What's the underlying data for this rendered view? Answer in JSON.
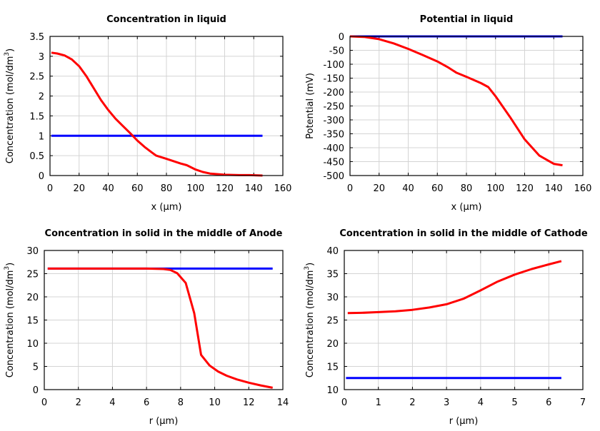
{
  "chart_data": [
    {
      "type": "line",
      "title": "Concentration in liquid",
      "xlabel": "x (µm)",
      "ylabel": "Concentration (mol/dm",
      "ylabel_sup": "3",
      "ylabel_end": ")",
      "xlim": [
        0,
        160
      ],
      "ylim": [
        0,
        3.5
      ],
      "xticks": [
        "0",
        "20",
        "40",
        "60",
        "80",
        "100",
        "120",
        "140",
        "160"
      ],
      "yticks": [
        "0",
        "0.5",
        "1",
        "1.5",
        "2",
        "2.5",
        "3",
        "3.5"
      ],
      "grid": true,
      "series": [
        {
          "color": "#0000ff",
          "x": [
            1,
            146
          ],
          "y": [
            1,
            1
          ]
        },
        {
          "color": "#ff0000",
          "x": [
            1,
            5,
            10,
            15,
            20,
            25,
            30,
            35,
            40,
            45,
            50,
            55,
            60,
            65,
            70,
            73,
            80,
            90,
            94,
            100,
            105,
            110,
            120,
            130,
            137,
            146
          ],
          "y": [
            3.09,
            3.07,
            3.02,
            2.92,
            2.75,
            2.5,
            2.2,
            1.9,
            1.65,
            1.43,
            1.25,
            1.07,
            0.88,
            0.72,
            0.58,
            0.5,
            0.42,
            0.3,
            0.26,
            0.15,
            0.09,
            0.05,
            0.02,
            0.01,
            0.01,
            0.0
          ]
        }
      ]
    },
    {
      "type": "line",
      "title": "Potential in liquid",
      "xlabel": "x (µm)",
      "ylabel": "Potential (mV)",
      "xlim": [
        0,
        160
      ],
      "ylim": [
        -500,
        0
      ],
      "xticks": [
        "0",
        "20",
        "40",
        "60",
        "80",
        "100",
        "120",
        "140",
        "160"
      ],
      "yticks": [
        "-500",
        "-450",
        "-400",
        "-350",
        "-300",
        "-250",
        "-200",
        "-150",
        "-100",
        "-50",
        "0"
      ],
      "grid": true,
      "series": [
        {
          "color": "#0000ff",
          "x": [
            0,
            146
          ],
          "y": [
            0,
            0
          ]
        },
        {
          "color": "#ff0000",
          "x": [
            0,
            10,
            20,
            30,
            40,
            50,
            60,
            67,
            73,
            80,
            90,
            95,
            100,
            110,
            120,
            130,
            140,
            146
          ],
          "y": [
            0,
            -2,
            -10,
            -25,
            -45,
            -67,
            -90,
            -110,
            -130,
            -145,
            -168,
            -182,
            -215,
            -290,
            -370,
            -428,
            -458,
            -463
          ]
        }
      ]
    },
    {
      "type": "line",
      "title": "Concentration in solid in the middle of Anode",
      "xlabel": "r (µm)",
      "ylabel": "Concentration (mol/dm",
      "ylabel_sup": "3",
      "ylabel_end": ")",
      "xlim": [
        0,
        14
      ],
      "ylim": [
        0,
        30
      ],
      "xticks": [
        "0",
        "2",
        "4",
        "6",
        "8",
        "10",
        "12",
        "14"
      ],
      "yticks": [
        "0",
        "5",
        "10",
        "15",
        "20",
        "25",
        "30"
      ],
      "grid": true,
      "series": [
        {
          "color": "#0000ff",
          "x": [
            0.2,
            13.4
          ],
          "y": [
            26.1,
            26.1
          ]
        },
        {
          "color": "#ff0000",
          "x": [
            0.2,
            6,
            7,
            7.4,
            7.8,
            8.3,
            8.8,
            9.2,
            9.7,
            10.2,
            10.7,
            11.3,
            12,
            12.7,
            13.4
          ],
          "y": [
            26.1,
            26.1,
            26.0,
            25.8,
            25.1,
            23,
            16.5,
            7.5,
            5.2,
            3.9,
            3.0,
            2.2,
            1.5,
            0.9,
            0.4
          ]
        }
      ]
    },
    {
      "type": "line",
      "title": "Concentration in solid in the middle of Cathode",
      "xlabel": "r (µm)",
      "ylabel": "Concentration (mol/dm",
      "ylabel_sup": "3",
      "ylabel_end": ")",
      "xlim": [
        0,
        7
      ],
      "ylim": [
        10,
        40
      ],
      "xticks": [
        "0",
        "1",
        "2",
        "3",
        "4",
        "5",
        "6",
        "7"
      ],
      "yticks": [
        "10",
        "15",
        "20",
        "25",
        "30",
        "35",
        "40"
      ],
      "grid": true,
      "series": [
        {
          "color": "#0000ff",
          "x": [
            0.05,
            6.37
          ],
          "y": [
            12.5,
            12.5
          ]
        },
        {
          "color": "#ff0000",
          "x": [
            0.1,
            0.5,
            1,
            1.5,
            2,
            2.5,
            3,
            3.5,
            4,
            4.5,
            5,
            5.5,
            6,
            6.37
          ],
          "y": [
            26.5,
            26.55,
            26.7,
            26.9,
            27.2,
            27.7,
            28.4,
            29.6,
            31.4,
            33.3,
            34.8,
            36,
            37,
            37.7
          ]
        }
      ]
    }
  ]
}
